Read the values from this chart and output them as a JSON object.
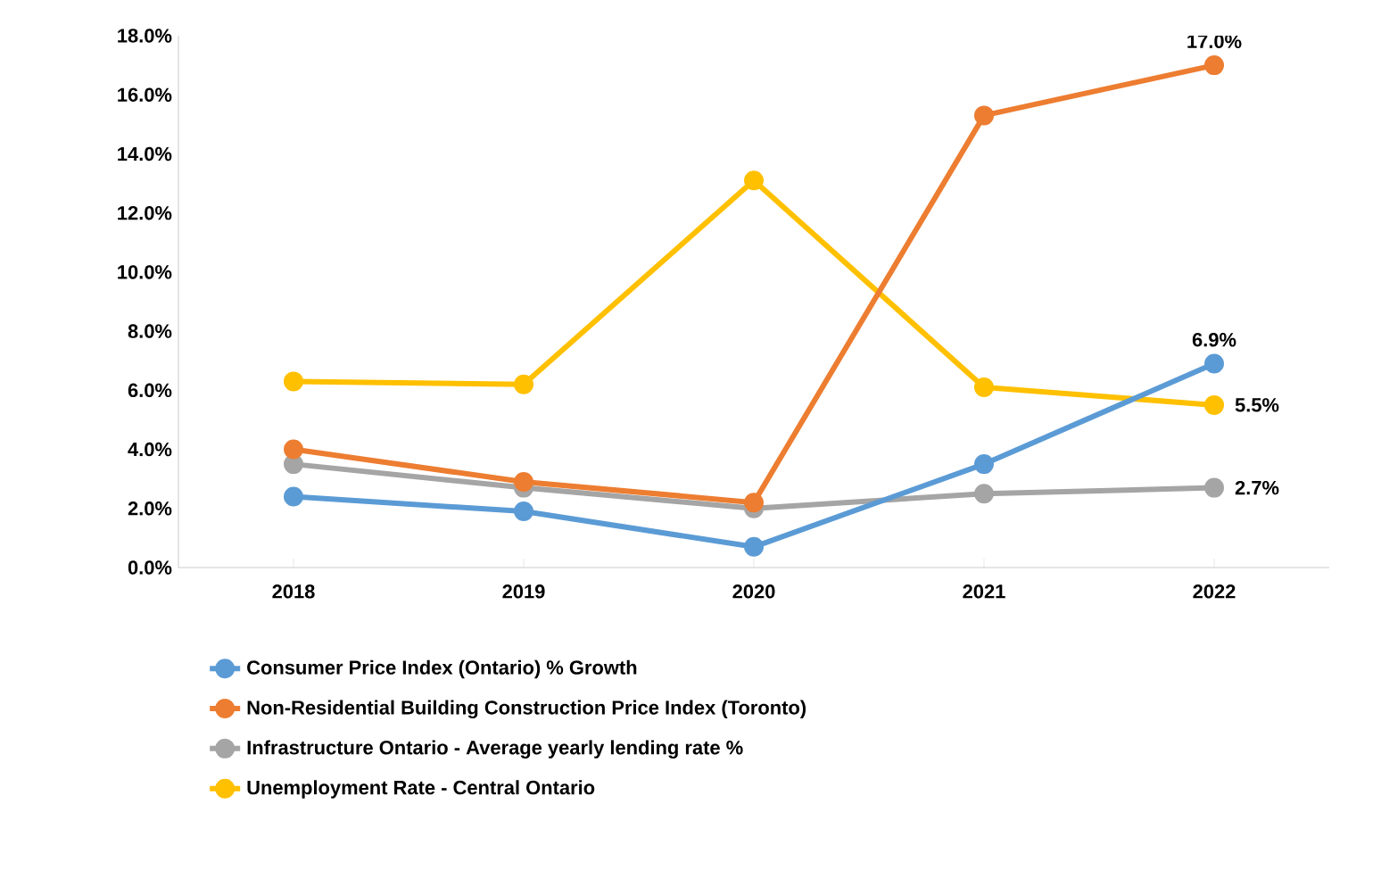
{
  "chart_data": {
    "type": "line",
    "categories": [
      "2018",
      "2019",
      "2020",
      "2021",
      "2022"
    ],
    "series": [
      {
        "name": "Consumer Price Index (Ontario) % Growth",
        "color": "#5b9bd5",
        "values": [
          2.4,
          1.9,
          0.7,
          3.5,
          6.9
        ],
        "value_labels": [
          null,
          null,
          null,
          null,
          "6.9%"
        ]
      },
      {
        "name": "Non-Residential Building Construction Price Index (Toronto)",
        "color": "#ed7d31",
        "values": [
          4.0,
          2.9,
          2.2,
          15.3,
          17.0
        ],
        "value_labels": [
          null,
          null,
          null,
          null,
          "17.0%"
        ]
      },
      {
        "name": "Infrastructure Ontario - Average yearly lending rate %",
        "color": "#a5a5a5",
        "values": [
          3.5,
          2.7,
          2.0,
          2.5,
          2.7
        ],
        "value_labels": [
          null,
          null,
          null,
          null,
          "2.7%"
        ]
      },
      {
        "name": "Unemployment Rate - Central Ontario",
        "color": "#ffc000",
        "values": [
          6.3,
          6.2,
          13.1,
          6.1,
          5.5
        ],
        "value_labels": [
          null,
          null,
          null,
          null,
          "5.5%"
        ]
      }
    ],
    "ylim": [
      0,
      18
    ],
    "yticks": [
      {
        "value": 0,
        "label": "0.0%"
      },
      {
        "value": 2,
        "label": "2.0%"
      },
      {
        "value": 4,
        "label": "4.0%"
      },
      {
        "value": 6,
        "label": "6.0%"
      },
      {
        "value": 8,
        "label": "8.0%"
      },
      {
        "value": 10,
        "label": "10.0%"
      },
      {
        "value": 12,
        "label": "12.0%"
      },
      {
        "value": 14,
        "label": "14.0%"
      },
      {
        "value": 16,
        "label": "16.0%"
      },
      {
        "value": 18,
        "label": "18.0%"
      }
    ],
    "marker": "circle",
    "line_style": "solid",
    "legend": "bottom"
  }
}
